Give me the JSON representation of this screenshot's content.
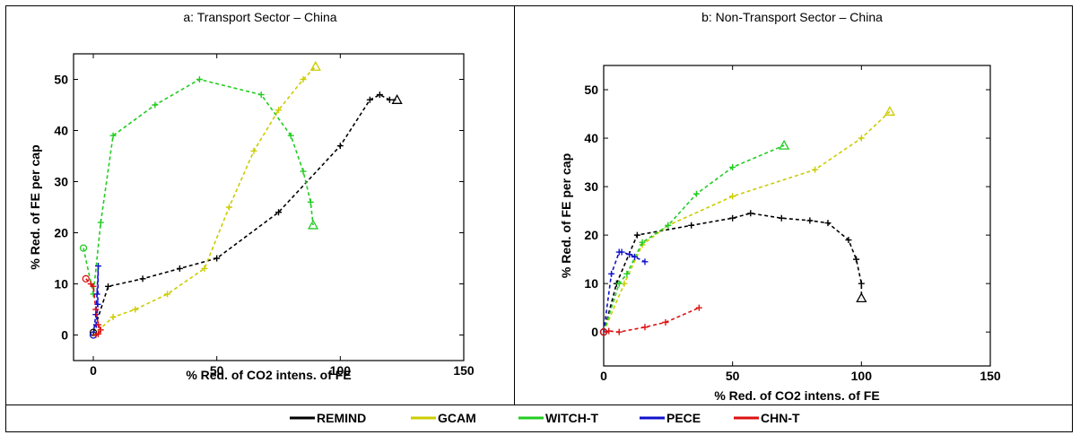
{
  "chart_data": [
    {
      "type": "line",
      "title": "a: Transport Sector – China",
      "xlabel": "% Red. of CO2 intens. of FE",
      "ylabel": "% Red. of FE per cap",
      "xlim": [
        -8,
        150
      ],
      "ylim": [
        -5,
        55
      ],
      "xticks": [
        0,
        50,
        100,
        150
      ],
      "yticks": [
        0,
        10,
        20,
        30,
        40,
        50
      ],
      "grid": false,
      "series": [
        {
          "name": "REMIND",
          "color": "#000000",
          "x": [
            0,
            6,
            20,
            35,
            50,
            75,
            100,
            112,
            116,
            120,
            123
          ],
          "y": [
            0.5,
            9.5,
            11,
            13,
            15,
            24,
            37,
            46,
            47,
            46,
            46
          ]
        },
        {
          "name": "GCAM",
          "color": "#cccc00",
          "x": [
            0,
            8,
            17,
            30,
            45,
            55,
            65,
            75,
            85,
            90
          ],
          "y": [
            0,
            3.5,
            5,
            8,
            13,
            25,
            36,
            44,
            50,
            52.5
          ]
        },
        {
          "name": "WITCH-T",
          "color": "#22cc22",
          "x": [
            -4,
            0,
            3,
            8,
            25,
            43,
            68,
            80,
            85,
            88,
            89
          ],
          "y": [
            17,
            8,
            22,
            39,
            45,
            50,
            47,
            39,
            32,
            26,
            21.5
          ]
        },
        {
          "name": "PECE",
          "color": "#1111cc",
          "x": [
            0,
            1,
            1.5,
            2,
            1.8,
            1.2
          ],
          "y": [
            0,
            4,
            8,
            13.5,
            6,
            2
          ]
        },
        {
          "name": "CHN-T",
          "color": "#dd1111",
          "x": [
            -3,
            -1,
            0,
            1,
            2,
            3,
            2,
            1
          ],
          "y": [
            11,
            10,
            9.5,
            5,
            2,
            1,
            0.2,
            0
          ]
        }
      ]
    },
    {
      "type": "line",
      "title": "b: Non-Transport Sector – China",
      "xlabel": "% Red. of CO2 intens. of FE",
      "ylabel": "% Red. of FE per cap",
      "xlim": [
        0,
        150
      ],
      "ylim": [
        -7,
        55
      ],
      "xticks": [
        0,
        50,
        100,
        150
      ],
      "yticks": [
        0,
        10,
        20,
        30,
        40,
        50
      ],
      "grid": false,
      "series": [
        {
          "name": "REMIND",
          "color": "#000000",
          "x": [
            0,
            5,
            13,
            34,
            50,
            57,
            69,
            80,
            87,
            95,
            98,
            100,
            100
          ],
          "y": [
            0,
            10,
            20,
            22,
            23.5,
            24.5,
            23.5,
            23,
            22.5,
            19,
            15,
            10,
            7
          ]
        },
        {
          "name": "GCAM",
          "color": "#cccc00",
          "x": [
            0,
            8,
            15,
            25,
            50,
            82,
            100,
            111
          ],
          "y": [
            0,
            10,
            18,
            22,
            28,
            33.5,
            40,
            45.5
          ]
        },
        {
          "name": "WITCH-T",
          "color": "#22cc22",
          "x": [
            0,
            6,
            9,
            15,
            25,
            36,
            50,
            70
          ],
          "y": [
            0,
            10,
            12,
            18.5,
            22,
            28.5,
            34,
            38.5
          ]
        },
        {
          "name": "PECE",
          "color": "#1111cc",
          "x": [
            0,
            3,
            6,
            7,
            10,
            12,
            16
          ],
          "y": [
            0,
            12,
            16.5,
            16.5,
            16,
            15.5,
            14.5
          ]
        },
        {
          "name": "CHN-T",
          "color": "#dd1111",
          "x": [
            0,
            2,
            6,
            16,
            24,
            37
          ],
          "y": [
            0,
            0.2,
            0,
            1,
            2,
            5
          ]
        }
      ]
    }
  ],
  "legend": {
    "placement": "bottom",
    "items": [
      {
        "label": "REMIND",
        "color": "#000000"
      },
      {
        "label": "GCAM",
        "color": "#cccc00"
      },
      {
        "label": "WITCH-T",
        "color": "#22cc22"
      },
      {
        "label": "PECE",
        "color": "#1111cc"
      },
      {
        "label": "CHN-T",
        "color": "#dd1111"
      }
    ]
  }
}
